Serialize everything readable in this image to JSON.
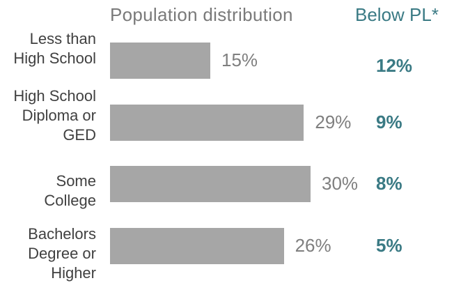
{
  "chart_data": {
    "type": "bar",
    "orientation": "horizontal",
    "title": "Population distribution",
    "secondary_column_title": "Below PL*",
    "categories": [
      "Less than\nHigh School",
      "High School\nDiploma or\nGED",
      "Some\nCollege",
      "Bachelors\nDegree or\nHigher"
    ],
    "series": [
      {
        "values": [
          15,
          29,
          30,
          26
        ],
        "value_labels": [
          "15%",
          "29%",
          "30%",
          "26%"
        ]
      }
    ],
    "below_pl_labels": [
      "12%",
      "9%",
      "8%",
      "5%"
    ],
    "below_pl_values": [
      12,
      9,
      8,
      5
    ],
    "xlim": [
      0,
      30
    ],
    "grid": false,
    "colors": {
      "bar": "#a6a6a6",
      "accent": "#3a7a84",
      "value_text": "#7f7f7f",
      "label_text": "#404040"
    }
  }
}
